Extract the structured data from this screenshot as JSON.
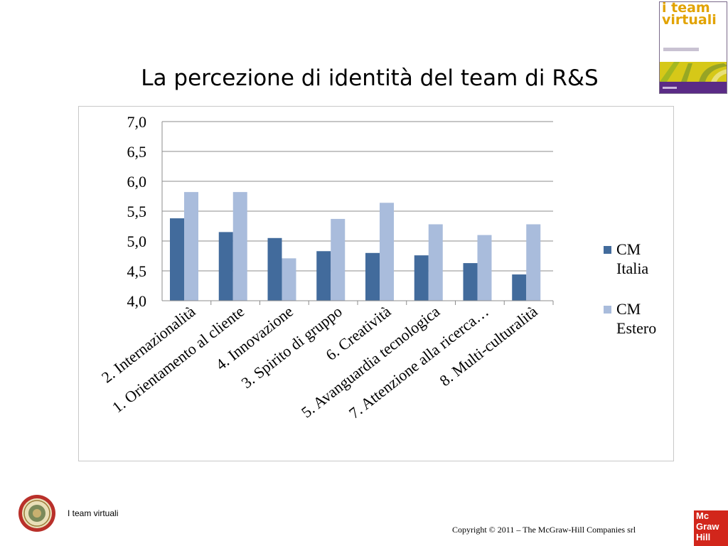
{
  "slide": {
    "title": "La percezione di identità del team di R&S"
  },
  "book_cover": {
    "title_line1": "i team",
    "title_line2": "virtuali",
    "colors": {
      "title": "#e2a300",
      "band": "#d6c818",
      "bottom": "#5b2b86"
    }
  },
  "footer": {
    "left_text": "I team virtuali",
    "copyright": "Copyright © 2011 – The McGraw-Hill Companies srl",
    "publisher_logo_lines": [
      "Mc",
      "Graw",
      "Hill"
    ],
    "publisher_logo_color": "#d2261b"
  },
  "chart_data": {
    "type": "bar",
    "title": "",
    "xlabel": "",
    "ylabel": "",
    "ylim": [
      4.0,
      7.0
    ],
    "yticks": [
      "4,0",
      "4,5",
      "5,0",
      "5,5",
      "6,0",
      "6,5",
      "7,0"
    ],
    "ytick_values": [
      4.0,
      4.5,
      5.0,
      5.5,
      6.0,
      6.5,
      7.0
    ],
    "grid": true,
    "legend_position": "right",
    "categories": [
      "2. Internazionalità",
      "1. Orientamento al cliente",
      "4. Innovazione",
      "3. Spirito di gruppo",
      "6. Creatività",
      "5. Avanguardia tecnologica",
      "7. Attenzione alla ricerca…",
      "8. Multi-culturalità"
    ],
    "series": [
      {
        "name": "CM Italia",
        "color": "#426b9c",
        "values": [
          5.38,
          5.15,
          5.05,
          4.83,
          4.8,
          4.76,
          4.63,
          4.44
        ]
      },
      {
        "name": "CM Estero",
        "color": "#a9bcdc",
        "values": [
          5.82,
          5.82,
          4.71,
          5.37,
          5.64,
          5.28,
          5.1,
          5.28
        ]
      }
    ],
    "legend": [
      {
        "line1": "CM",
        "line2": "Italia"
      },
      {
        "line1": "CM",
        "line2": "Estero"
      }
    ]
  }
}
